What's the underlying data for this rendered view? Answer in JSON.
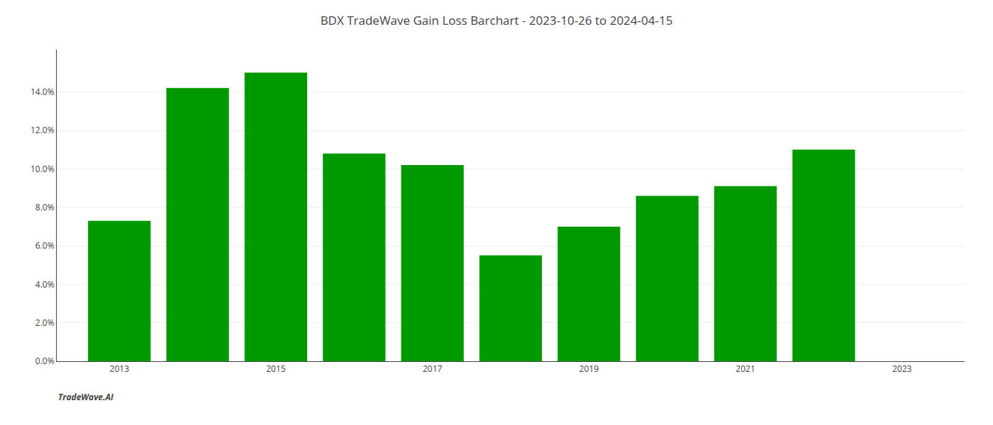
{
  "chart_data": {
    "type": "bar",
    "title": "BDX TradeWave Gain Loss Barchart - 2023-10-26 to 2024-04-15",
    "annotations": [
      "TradeWave.AI"
    ],
    "x": [
      2013,
      2014,
      2015,
      2016,
      2017,
      2018,
      2019,
      2020,
      2021,
      2022
    ],
    "values": [
      0.073,
      0.142,
      0.15,
      0.108,
      0.102,
      0.055,
      0.07,
      0.086,
      0.091,
      0.11
    ],
    "color": "#009900",
    "xlim": [
      2012.2,
      2023.8
    ],
    "xticks": [
      2013,
      2015,
      2017,
      2019,
      2021,
      2023
    ],
    "ylim": [
      0,
      0.162
    ],
    "yticks": [
      {
        "value": 0.0,
        "label": "0.0%"
      },
      {
        "value": 0.02,
        "label": "2.0%"
      },
      {
        "value": 0.04,
        "label": "4.0%"
      },
      {
        "value": 0.06,
        "label": "6.0%"
      },
      {
        "value": 0.08,
        "label": "8.0%"
      },
      {
        "value": 0.1,
        "label": "10.0%"
      },
      {
        "value": 0.12,
        "label": "12.0%"
      },
      {
        "value": 0.14,
        "label": "14.0%"
      }
    ],
    "grid": true
  }
}
